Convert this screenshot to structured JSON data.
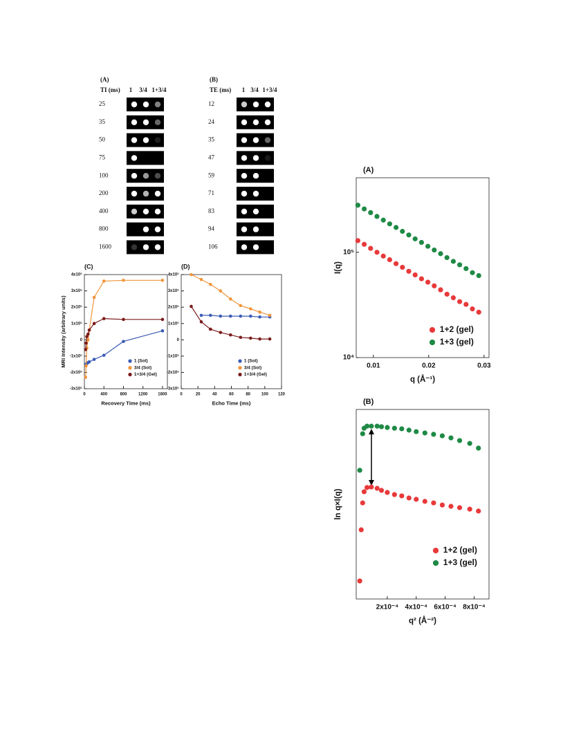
{
  "mri_panels": [
    {
      "label": "(A)",
      "parameter": "TI (ms)",
      "columns": [
        "1",
        "3/4",
        "1+3/4"
      ],
      "column_colors": [
        "#3b5bb5",
        "#e8892b",
        "#7a1a1a"
      ],
      "rows": [
        "25",
        "35",
        "50",
        "75",
        "100",
        "200",
        "400",
        "800",
        "1600"
      ]
    },
    {
      "label": "(B)",
      "parameter": "TE (ms)",
      "columns": [
        "1",
        "3/4",
        "1+3/4"
      ],
      "column_colors": [
        "#3b5bb5",
        "#e8892b",
        "#7a1a1a"
      ],
      "rows": [
        "12",
        "24",
        "35",
        "47",
        "59",
        "71",
        "83",
        "94",
        "106"
      ]
    }
  ],
  "chart_data": [
    {
      "type": "line",
      "title": "(C)",
      "x_label": "Recovery Time (ms)",
      "y_label": "MRI Intensity (arbitrary units)",
      "x": [
        25,
        35,
        50,
        75,
        100,
        200,
        400,
        800,
        1600
      ],
      "series": [
        {
          "name": "1 (Sol)",
          "color": "#3b5bb5",
          "values": [
            -150000,
            -150000,
            -145000,
            -140000,
            -135000,
            -120000,
            -95000,
            -10000,
            55000
          ]
        },
        {
          "name": "3/4 (Sol)",
          "color": "#f0953a",
          "values": [
            -230000,
            -160000,
            -50000,
            0,
            60000,
            260000,
            360000,
            365000,
            365000
          ]
        },
        {
          "name": "1+3/4 (Gel)",
          "color": "#7a1a1a",
          "values": [
            -60000,
            -20000,
            20000,
            35000,
            60000,
            100000,
            130000,
            125000,
            125000
          ]
        }
      ],
      "xlim": [
        0,
        1700
      ],
      "xticks": [
        0,
        400,
        800,
        1200,
        1600
      ],
      "ylim": [
        -300000,
        400000
      ],
      "yticks": [
        {
          "value": 400000,
          "label": "4x10⁵"
        },
        {
          "value": 300000,
          "label": "3x10⁵"
        },
        {
          "value": 200000,
          "label": "2x10⁵"
        },
        {
          "value": 100000,
          "label": "1x10⁵"
        },
        0,
        {
          "value": -100000,
          "label": "-1x10⁵"
        },
        {
          "value": -200000,
          "label": "-2x10⁵"
        },
        {
          "value": -300000,
          "label": "-3x10⁵"
        }
      ],
      "legend": "lower right"
    },
    {
      "type": "line",
      "title": "(D)",
      "x_label": "Echo Time (ms)",
      "x": [
        12,
        24,
        35,
        47,
        59,
        71,
        83,
        94,
        106
      ],
      "series": [
        {
          "name": "1 (Sol)",
          "color": "#3b5bb5",
          "values": [
            null,
            150000,
            150000,
            145000,
            145000,
            145000,
            145000,
            140000,
            140000
          ]
        },
        {
          "name": "3/4 (Sol)",
          "color": "#f0953a",
          "values": [
            400000,
            370000,
            340000,
            300000,
            250000,
            210000,
            190000,
            170000,
            150000
          ]
        },
        {
          "name": "1+3/4 (Gel)",
          "color": "#7a1a1a",
          "values": [
            205000,
            110000,
            65000,
            45000,
            30000,
            15000,
            10000,
            5000,
            5000
          ]
        }
      ],
      "xlim": [
        0,
        120
      ],
      "xticks": [
        0,
        20,
        40,
        60,
        80,
        100,
        120
      ],
      "ylim": [
        -300000,
        400000
      ],
      "yticks": [
        {
          "value": 400000,
          "label": "4x10⁵"
        },
        {
          "value": 300000,
          "label": "3x10⁵"
        },
        {
          "value": 200000,
          "label": "2x10⁵"
        },
        {
          "value": 100000,
          "label": "1x10⁵"
        },
        0,
        {
          "value": -100000,
          "label": "-1x10⁵"
        },
        {
          "value": -200000,
          "label": "-2x10⁵"
        },
        {
          "value": -300000,
          "label": "-3x10⁵"
        }
      ],
      "legend": "lower right"
    },
    {
      "type": "scatter",
      "title": "(A)",
      "x_label": "q (Å⁻¹)",
      "y_label": "I(q)",
      "ylog": true,
      "x": [
        0.0072,
        0.00835,
        0.0095,
        0.01065,
        0.0118,
        0.01295,
        0.0141,
        0.01525,
        0.0164,
        0.01755,
        0.0187,
        0.01985,
        0.021,
        0.02215,
        0.0233,
        0.02445,
        0.0256,
        0.02675,
        0.0279,
        0.02905
      ],
      "series": [
        {
          "name": "1+2 (gel)",
          "color": "#e8393a",
          "values": [
            129000,
            119000,
            109000,
            100000,
            92000,
            85000,
            78000,
            72000,
            66000,
            61000,
            56000,
            52000,
            48000,
            44000,
            40000,
            37000,
            34000,
            32000,
            29000,
            27000
          ]
        },
        {
          "name": "1+3 (gel)",
          "color": "#1e8a45",
          "values": [
            280000,
            258000,
            238000,
            219000,
            202000,
            186000,
            172000,
            158000,
            146000,
            134000,
            124000,
            114000,
            105000,
            97000,
            89000,
            82000,
            76000,
            70000,
            64000,
            60000
          ]
        }
      ],
      "xlim": [
        0.0069,
        0.0309
      ],
      "xticks": [
        0.01,
        0.02,
        0.03
      ],
      "ylim": [
        10000,
        510000
      ],
      "yticks": [
        {
          "value": 10000,
          "label": "10⁴"
        },
        {
          "value": 100000,
          "label": "10⁵"
        }
      ],
      "legend": "lower right"
    },
    {
      "type": "scatter",
      "title": "(B)",
      "x_label": "q² (Å⁻²)",
      "y_label": "ln q×I(q)",
      "x": [
        1e-05,
        2e-05,
        3e-05,
        4e-05,
        6e-05,
        9e-05,
        0.00013,
        0.00016,
        0.0002,
        0.00025,
        0.0003,
        0.00035,
        0.0004,
        0.00046,
        0.00052,
        0.00058,
        0.00064,
        0.0007,
        0.00077,
        0.00083
      ],
      "series": [
        {
          "name": "1+2 (gel)",
          "color": "#e8393a",
          "values": [
            9.5,
            36.5,
            50.7,
            56.6,
            58.8,
            59.1,
            58.4,
            57.3,
            56.2,
            55.1,
            54.4,
            53.3,
            52.6,
            51.5,
            50.7,
            49.6,
            48.9,
            48.2,
            47.4,
            46.4
          ]
        },
        {
          "name": "1+3 (gel)",
          "color": "#1e8a45",
          "values": [
            67.9,
            null,
            87.2,
            90.1,
            91.2,
            91.2,
            91.2,
            90.9,
            90.5,
            90.1,
            89.8,
            89.1,
            88.3,
            87.6,
            86.9,
            86.1,
            85.0,
            83.6,
            82.1,
            79.6
          ]
        }
      ],
      "xlim": [
        -1.46e-05,
        0.000903
      ],
      "xticks": [
        {
          "value": 0.0002,
          "label": "2x10⁻⁴"
        },
        {
          "value": 0.0004,
          "label": "4x10⁻⁴"
        },
        {
          "value": 0.0006,
          "label": "6x10⁻⁴"
        },
        {
          "value": 0.0008,
          "label": "8x10⁻⁴"
        }
      ],
      "ylim": [
        0,
        100
      ],
      "legend": "lower right"
    }
  ]
}
